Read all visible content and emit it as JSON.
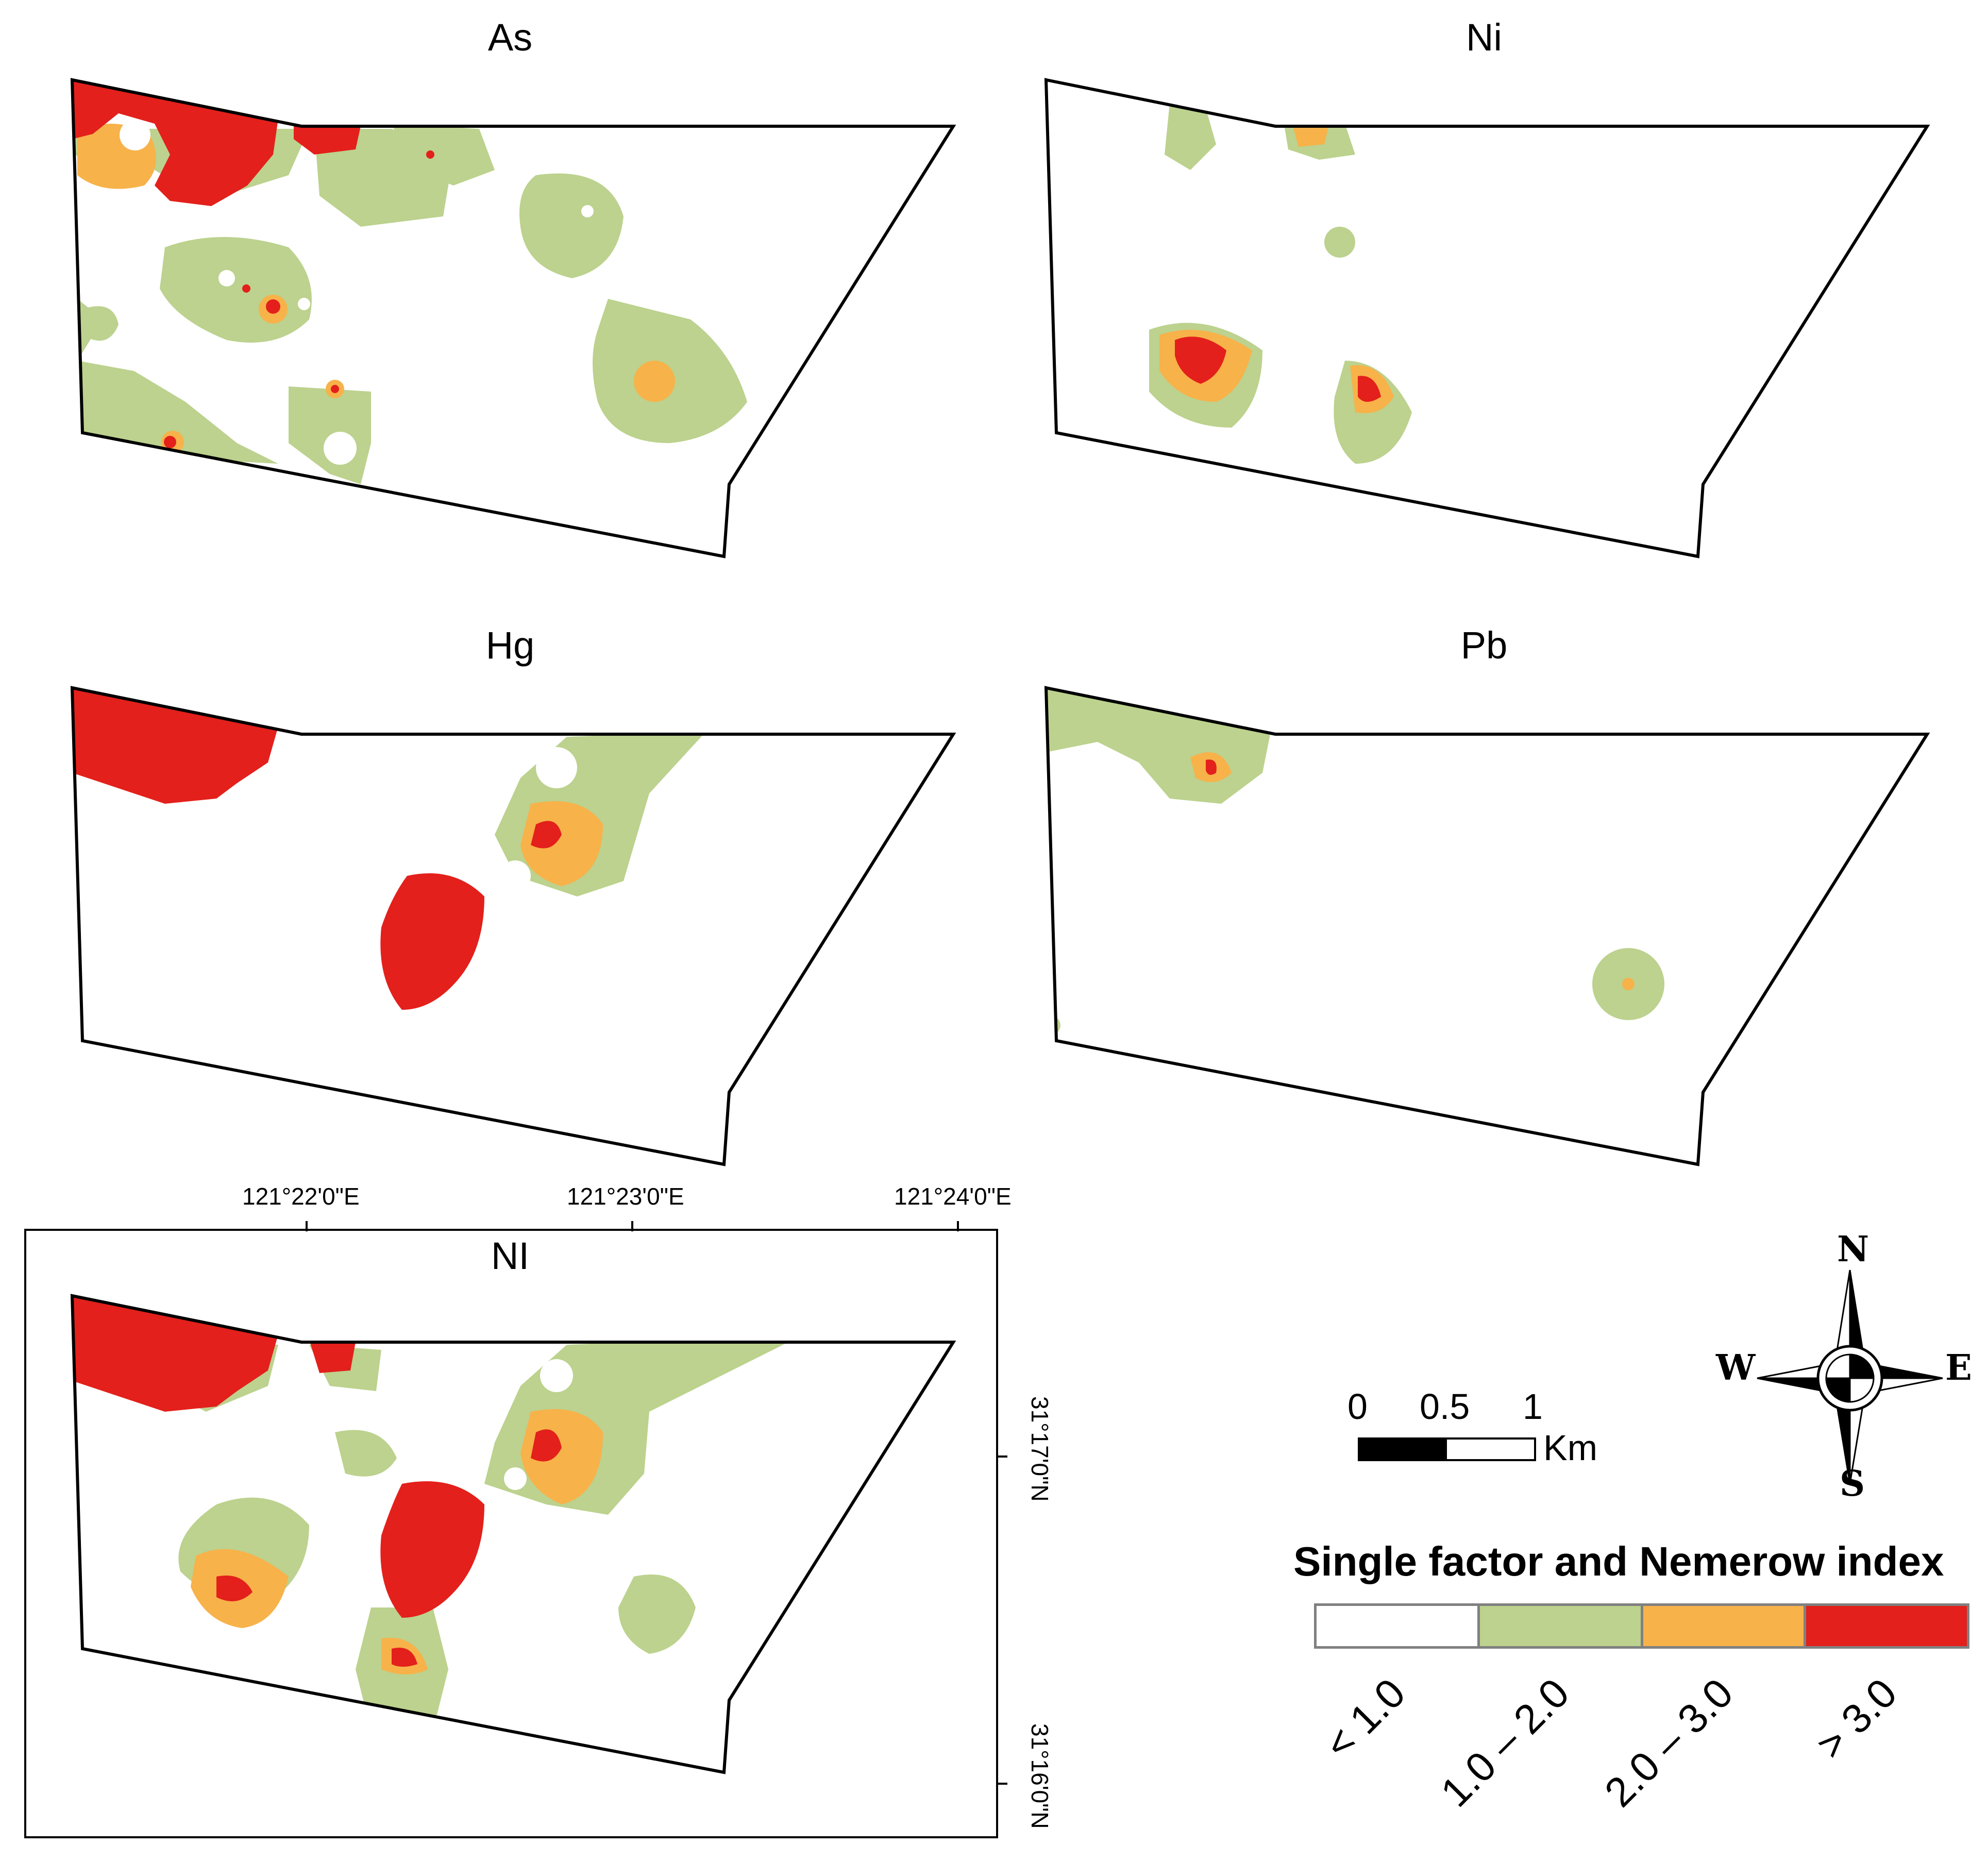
{
  "maps": [
    {
      "title": "As"
    },
    {
      "title": "Ni"
    },
    {
      "title": "Hg"
    },
    {
      "title": "Pb"
    },
    {
      "title": "NI"
    }
  ],
  "coordinates": {
    "longitude_labels": [
      "121°22'0\"E",
      "121°23'0\"E",
      "121°24'0\"E"
    ],
    "latitude_labels": [
      "31°17'0\"N",
      "31°16'0\"N"
    ]
  },
  "scale_bar": {
    "ticks": [
      "0",
      "0.5",
      "1"
    ],
    "unit": "Km"
  },
  "compass": {
    "north": "N",
    "south": "S",
    "east": "E",
    "west": "W"
  },
  "legend": {
    "title": "Single factor and Nemerow index",
    "classes": [
      {
        "label": "< 1.0",
        "color": "#ffffff"
      },
      {
        "label": "1.0 – 2.0",
        "color": "#bcd28e"
      },
      {
        "label": "2.0 – 3.0",
        "color": "#f7b24a"
      },
      {
        "label": "> 3.0",
        "color": "#e3201b"
      }
    ]
  },
  "colors": {
    "green": "#bcd28e",
    "orange": "#f7b24a",
    "red": "#e3201b",
    "outline": "#000000"
  }
}
